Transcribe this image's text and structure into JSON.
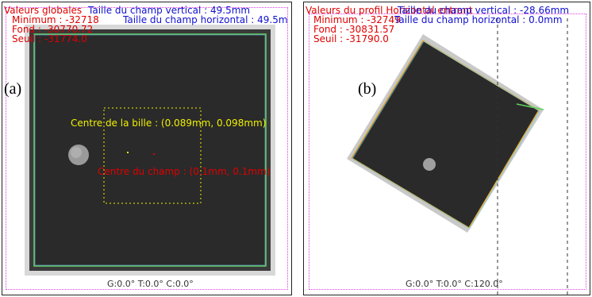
{
  "panel_a": {
    "label": "(a)",
    "header_title": "Valeurs globales",
    "field_vertical": "Taille du champ vertical : 49.5mm",
    "field_horizontal": "Taille du champ horizontal : 49.5m",
    "minimum": "Minimum : -32718",
    "fond": "Fond : -30770.72",
    "seuil": "Seuil : -31774.0",
    "ball_center": "Centre de la bille : (0.089mm, 0.098mm)",
    "field_center": "Centre du champ : (0.1mm, 0.1mm)",
    "gantry": "G:0.0° T:0.0° C:0.0°"
  },
  "panel_b": {
    "label": "(b)",
    "header_title": "Valeurs du profil Horizontal entrant",
    "field_vertical": "Taille du champ vertical : -28.66mm",
    "minimum": "Minimum : -32749",
    "field_horizontal": "Taille du champ horizontal : 0.0mm",
    "fond": "Fond : -30831.57",
    "seuil": "Seuil : -31790.0",
    "gantry": "G:0.0° T:0.0° C:120.0°"
  },
  "colors": {
    "red": "#e00000",
    "blue": "#1010d0",
    "yellow": "#f0f000",
    "magenta": "#e040e0",
    "field": "#2a2a2a"
  }
}
